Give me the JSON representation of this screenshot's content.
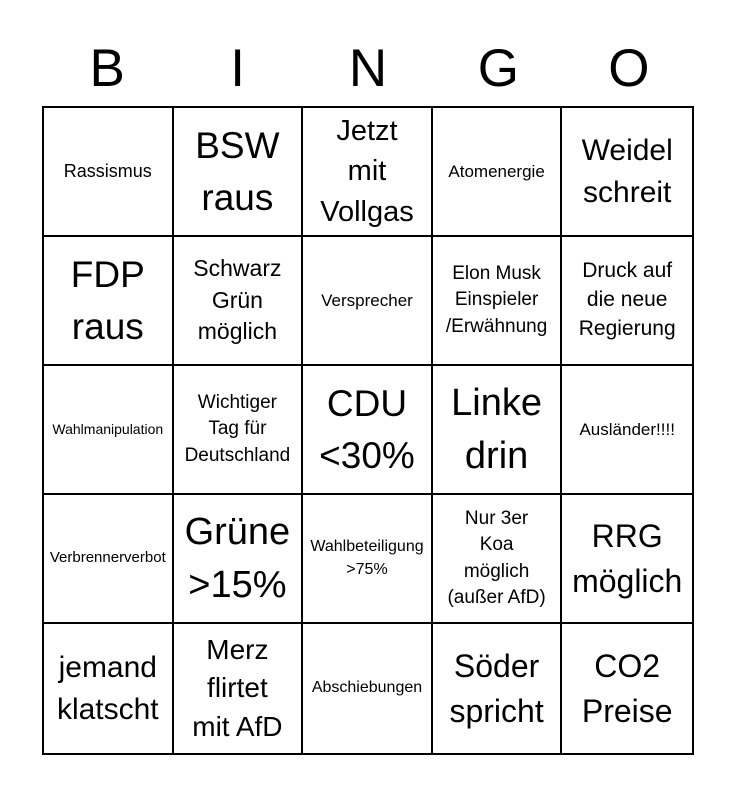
{
  "page": {
    "background": "#ffffff",
    "text_color": "#000000"
  },
  "title": {
    "word": "BINGO",
    "letters": [
      "B",
      "I",
      "N",
      "G",
      "O"
    ]
  },
  "grid": {
    "line_color": "#000000",
    "rows": [
      [
        {
          "text": "Rassismus",
          "lines": [
            "Rassismus"
          ],
          "font_px": 18
        },
        {
          "text": "BSW raus",
          "lines": [
            "BSW",
            "raus"
          ],
          "font_px": 37
        },
        {
          "text": "Jetzt mit Vollgas",
          "lines": [
            "Jetzt",
            "mit",
            "Vollgas"
          ],
          "font_px": 29
        },
        {
          "text": "Atomenergie",
          "lines": [
            "Atomenergie"
          ],
          "font_px": 17
        },
        {
          "text": "Weidel schreit",
          "lines": [
            "Weidel",
            "schreit"
          ],
          "font_px": 30
        }
      ],
      [
        {
          "text": "FDP raus",
          "lines": [
            "FDP",
            "raus"
          ],
          "font_px": 37
        },
        {
          "text": "Schwarz Grün möglich",
          "lines": [
            "Schwarz",
            "Grün",
            "möglich"
          ],
          "font_px": 23
        },
        {
          "text": "Versprecher",
          "lines": [
            "Versprecher"
          ],
          "font_px": 17
        },
        {
          "text": "Elon Musk Einspieler /Erwähnung",
          "lines": [
            "Elon Musk",
            "Einspieler",
            "/Erwähnung"
          ],
          "font_px": 19
        },
        {
          "text": "Druck auf die neue Regierung",
          "lines": [
            "Druck auf",
            "die neue",
            "Regierung"
          ],
          "font_px": 21
        }
      ],
      [
        {
          "text": "Wahlmanipulation",
          "lines": [
            "Wahlmanipulation"
          ],
          "font_px": 14
        },
        {
          "text": "Wichtiger Tag für Deutschland",
          "lines": [
            "Wichtiger",
            "Tag für",
            "Deutschland"
          ],
          "font_px": 19
        },
        {
          "text": "CDU <30%",
          "lines": [
            "CDU",
            "<30%"
          ],
          "font_px": 37
        },
        {
          "text": "Linke drin",
          "lines": [
            "Linke",
            "drin"
          ],
          "font_px": 38
        },
        {
          "text": "Ausländer!!!!",
          "lines": [
            "Ausländer!!!!"
          ],
          "font_px": 17
        }
      ],
      [
        {
          "text": "Verbrennerverbot",
          "lines": [
            "Verbrennerverbot"
          ],
          "font_px": 15
        },
        {
          "text": "Grüne >15%",
          "lines": [
            "Grüne",
            ">15%"
          ],
          "font_px": 38
        },
        {
          "text": "Wahlbeteiligung >75%",
          "lines": [
            "Wahlbeteiligung",
            ">75%"
          ],
          "font_px": 16
        },
        {
          "text": "Nur 3er Koa möglich (außer AfD)",
          "lines": [
            "Nur 3er",
            "Koa",
            "möglich",
            "(außer AfD)"
          ],
          "font_px": 19
        },
        {
          "text": "RRG möglich",
          "lines": [
            "RRG",
            "möglich"
          ],
          "font_px": 32
        }
      ],
      [
        {
          "text": "jemand klatscht",
          "lines": [
            "jemand",
            "klatscht"
          ],
          "font_px": 30
        },
        {
          "text": "Merz flirtet mit AfD",
          "lines": [
            "Merz",
            "flirtet",
            "mit AfD"
          ],
          "font_px": 28
        },
        {
          "text": "Abschiebungen",
          "lines": [
            "Abschiebungen"
          ],
          "font_px": 16
        },
        {
          "text": "Söder spricht",
          "lines": [
            "Söder",
            "spricht"
          ],
          "font_px": 32
        },
        {
          "text": "CO2 Preise",
          "lines": [
            "CO2",
            "Preise"
          ],
          "font_px": 32
        }
      ]
    ]
  }
}
